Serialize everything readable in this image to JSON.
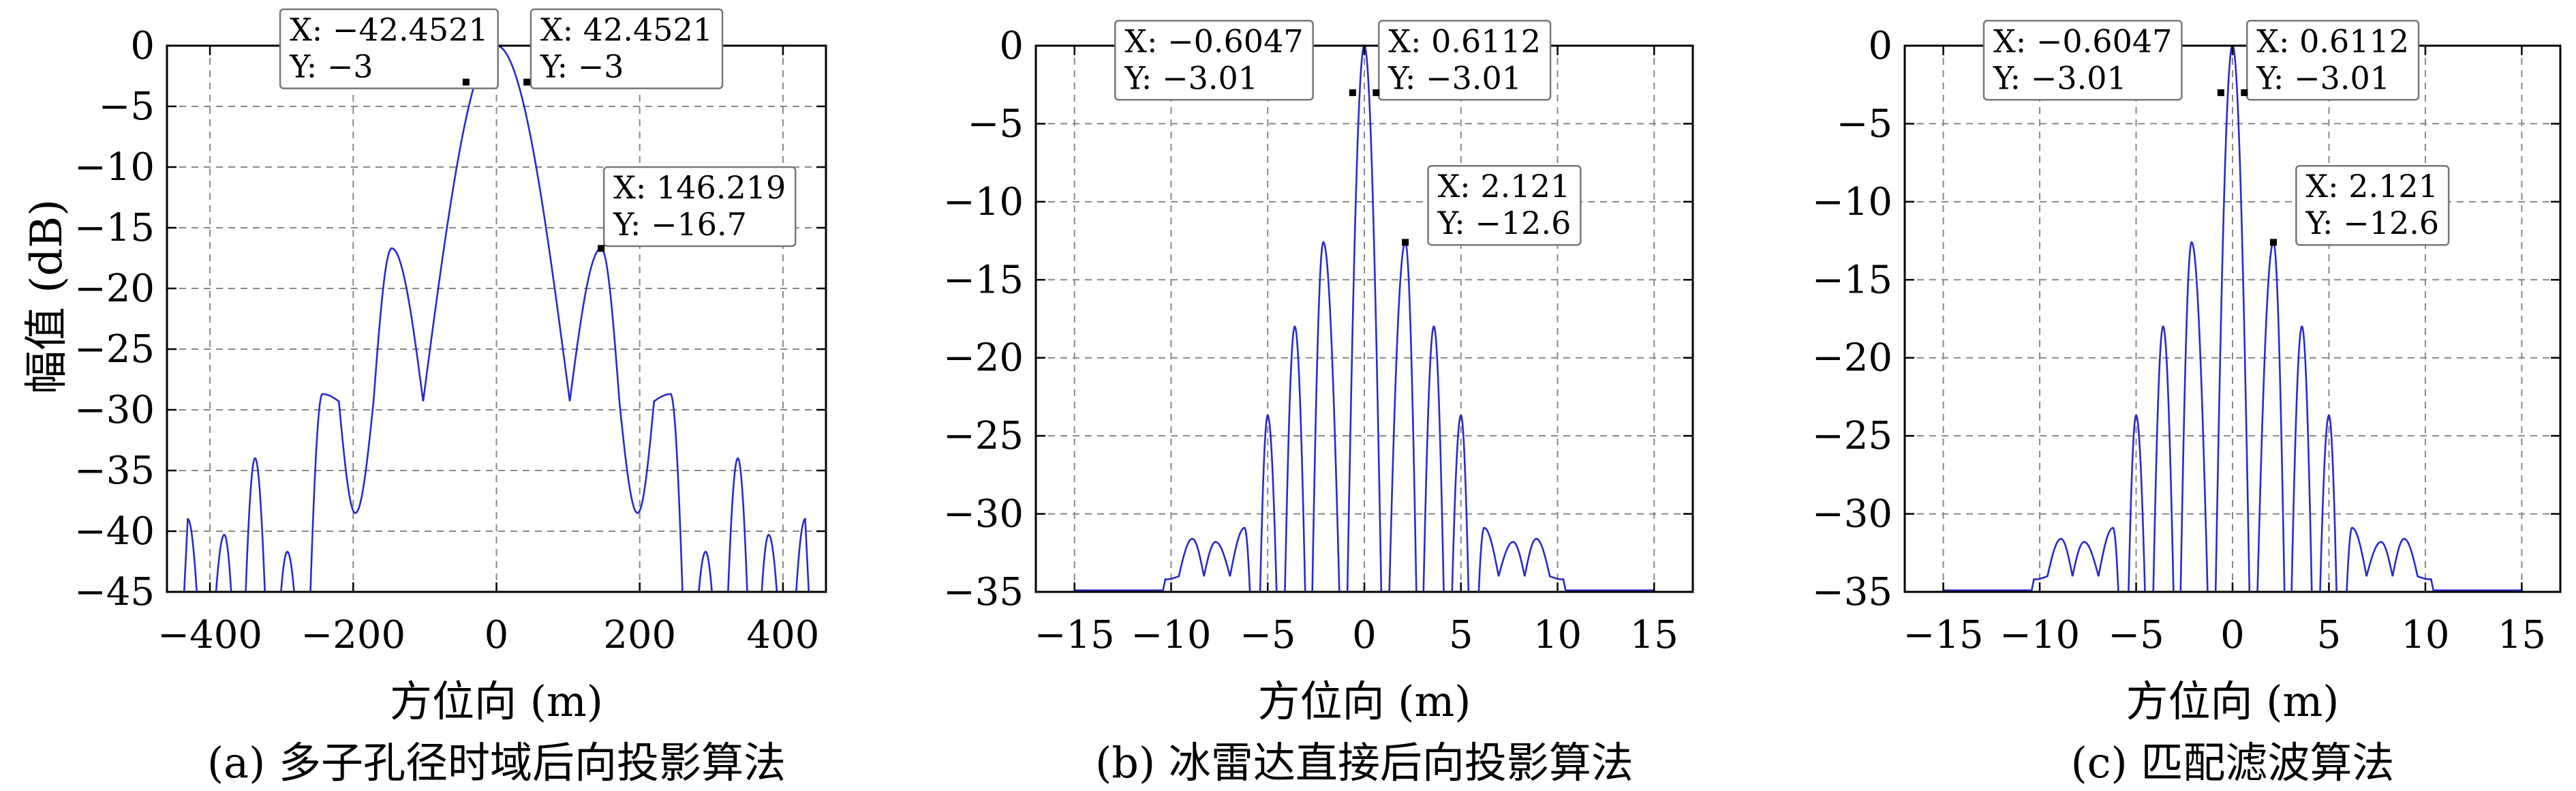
{
  "figure": {
    "ylabel": "幅值 (dB)"
  },
  "chart_data": [
    {
      "type": "line",
      "caption": "(a) 多子孔径时域后向投影算法",
      "xlabel": "方位向 (m)",
      "ylabel": "幅值 (dB)",
      "xlim": [
        -460,
        460
      ],
      "ylim": [
        -45,
        0
      ],
      "xticks": [
        -400,
        -200,
        0,
        200,
        400
      ],
      "yticks": [
        0,
        -5,
        -10,
        -15,
        -20,
        -25,
        -30,
        -35,
        -40,
        -45
      ],
      "grid": true,
      "color": "#2a2ac8",
      "curve": {
        "mainlobe_half_width_m": 103,
        "sidelobe_spacing_m": 94,
        "first_null_depth_db": -29.3,
        "deep_null_from_m": 260,
        "x_range": [
          -440,
          440
        ]
      },
      "peaks": [
        {
          "x": -431,
          "y": -39
        },
        {
          "x": -380,
          "y": -40.3
        },
        {
          "x": -337,
          "y": -34
        },
        {
          "x": -292,
          "y": -41.7
        },
        {
          "x": -243,
          "y": -28.7
        },
        {
          "x": -197,
          "y": -38.5
        },
        {
          "x": -146.219,
          "y": -16.7
        },
        {
          "x": 0,
          "y": 0
        },
        {
          "x": 146.219,
          "y": -16.7
        },
        {
          "x": 197,
          "y": -38.5
        },
        {
          "x": 243,
          "y": -28.7
        },
        {
          "x": 292,
          "y": -41.7
        },
        {
          "x": 337,
          "y": -34
        },
        {
          "x": 380,
          "y": -40.3
        },
        {
          "x": 431,
          "y": -39
        }
      ],
      "markers": [
        {
          "x": -42.4521,
          "y": -3,
          "x_text": "X: −42.4521",
          "y_text": "Y: −3",
          "box_x": -302,
          "box_y": 3,
          "anchor": "right"
        },
        {
          "x": 42.4521,
          "y": -3,
          "x_text": "X: 42.4521",
          "y_text": "Y: −3",
          "box_x": 48,
          "box_y": 3,
          "anchor": "left"
        },
        {
          "x": 146.219,
          "y": -16.7,
          "x_text": "X: 146.219",
          "y_text": "Y: −16.7",
          "box_x": 150,
          "box_y": -10,
          "anchor": "left"
        }
      ]
    },
    {
      "type": "line",
      "caption": "(b) 冰雷达直接后向投影算法",
      "xlabel": "方位向 (m)",
      "ylabel": "",
      "xlim": [
        -17,
        17
      ],
      "ylim": [
        -35,
        0
      ],
      "xticks": [
        -15,
        -10,
        -5,
        0,
        5,
        10,
        15
      ],
      "yticks": [
        0,
        -5,
        -10,
        -15,
        -20,
        -25,
        -30,
        -35
      ],
      "grid": true,
      "color": "#2a2ac8",
      "curve": {
        "mainlobe_half_width_m": 1.05,
        "sidelobe_spacing_m": 1.41,
        "flat_floor_range": [
          -15,
          15
        ],
        "x_range": [
          -10.5,
          10.5
        ]
      },
      "peaks": [
        {
          "x": -10.3,
          "y": -34.2
        },
        {
          "x": -8.9,
          "y": -31.6
        },
        {
          "x": -7.7,
          "y": -31.8
        },
        {
          "x": -6.2,
          "y": -30.9
        },
        {
          "x": -5.0,
          "y": -23.7
        },
        {
          "x": -3.6,
          "y": -18
        },
        {
          "x": -2.121,
          "y": -12.6
        },
        {
          "x": 0,
          "y": 0
        },
        {
          "x": 2.121,
          "y": -12.6
        },
        {
          "x": 3.6,
          "y": -18
        },
        {
          "x": 5.0,
          "y": -23.7
        },
        {
          "x": 6.2,
          "y": -30.9
        },
        {
          "x": 7.7,
          "y": -31.8
        },
        {
          "x": 8.9,
          "y": -31.6
        },
        {
          "x": 10.3,
          "y": -34.2
        }
      ],
      "markers": [
        {
          "x": -0.6047,
          "y": -3.01,
          "x_text": "X: −0.6047",
          "y_text": "Y: −3.01",
          "box_x": -12.9,
          "box_y": 1.6,
          "anchor": "right"
        },
        {
          "x": 0.6112,
          "y": -3.01,
          "x_text": "X: 0.6112",
          "y_text": "Y: −3.01",
          "box_x": 0.75,
          "box_y": 1.6,
          "anchor": "left"
        },
        {
          "x": 2.121,
          "y": -12.6,
          "x_text": "X: 2.121",
          "y_text": "Y: −12.6",
          "box_x": 3.3,
          "box_y": -7.7,
          "anchor": "left"
        }
      ]
    },
    {
      "type": "line",
      "caption": "(c) 匹配滤波算法",
      "xlabel": "方位向 (m)",
      "ylabel": "",
      "xlim": [
        -17,
        17
      ],
      "ylim": [
        -35,
        0
      ],
      "xticks": [
        -15,
        -10,
        -5,
        0,
        5,
        10,
        15
      ],
      "yticks": [
        0,
        -5,
        -10,
        -15,
        -20,
        -25,
        -30,
        -35
      ],
      "grid": true,
      "color": "#2a2ac8",
      "curve": {
        "mainlobe_half_width_m": 1.05,
        "sidelobe_spacing_m": 1.41,
        "flat_floor_range": [
          -15,
          15
        ],
        "x_range": [
          -10.5,
          10.5
        ]
      },
      "peaks": [
        {
          "x": -10.3,
          "y": -34.2
        },
        {
          "x": -8.9,
          "y": -31.6
        },
        {
          "x": -7.7,
          "y": -31.8
        },
        {
          "x": -6.2,
          "y": -30.9
        },
        {
          "x": -5.0,
          "y": -23.7
        },
        {
          "x": -3.6,
          "y": -18
        },
        {
          "x": -2.121,
          "y": -12.6
        },
        {
          "x": 0,
          "y": 0
        },
        {
          "x": 2.121,
          "y": -12.6
        },
        {
          "x": 3.6,
          "y": -18
        },
        {
          "x": 5.0,
          "y": -23.7
        },
        {
          "x": 6.2,
          "y": -30.9
        },
        {
          "x": 7.7,
          "y": -31.8
        },
        {
          "x": 8.9,
          "y": -31.6
        },
        {
          "x": 10.3,
          "y": -34.2
        }
      ],
      "markers": [
        {
          "x": -0.6047,
          "y": -3.01,
          "x_text": "X: −0.6047",
          "y_text": "Y: −3.01",
          "box_x": -12.9,
          "box_y": 1.6,
          "anchor": "right"
        },
        {
          "x": 0.6112,
          "y": -3.01,
          "x_text": "X: 0.6112",
          "y_text": "Y: −3.01",
          "box_x": 0.75,
          "box_y": 1.6,
          "anchor": "left"
        },
        {
          "x": 2.121,
          "y": -12.6,
          "x_text": "X: 2.121",
          "y_text": "Y: −12.6",
          "box_x": 3.3,
          "box_y": -7.7,
          "anchor": "left"
        }
      ]
    }
  ]
}
